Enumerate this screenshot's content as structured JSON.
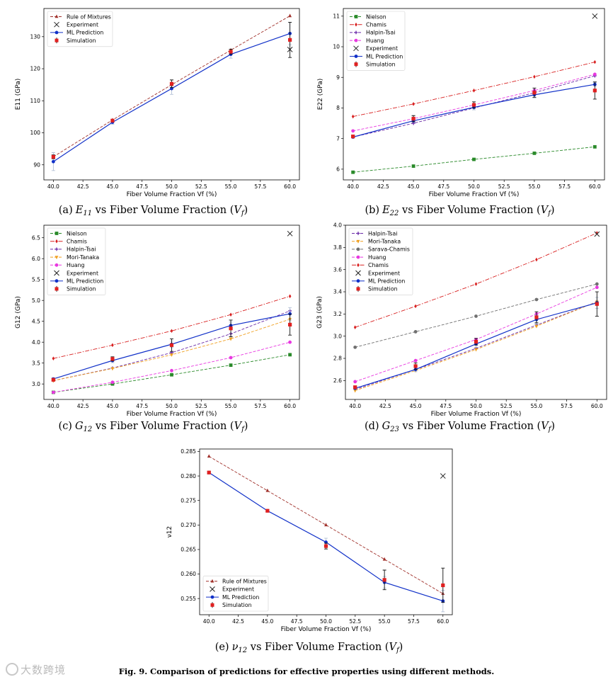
{
  "figure": {
    "caption_label": "Fig. 9.",
    "caption_text": "Comparison of predictions for effective properties using different methods.",
    "watermark": "大数跨境"
  },
  "chart_data": [
    {
      "id": "a",
      "type": "line",
      "caption_tag": "(a)",
      "caption_sym": "E",
      "caption_sub": "11",
      "caption_text": "vs Fiber Volume Fraction (",
      "caption_var": "V",
      "caption_var_sub": "f",
      "caption_end": ")",
      "xlabel": "Fiber Volume Fraction Vf (%)",
      "ylabel": "E11 (GPa)",
      "xlim": [
        39.2,
        60.8
      ],
      "ylim": [
        85.3,
        138.8
      ],
      "xticks": [
        40.0,
        42.5,
        45.0,
        47.5,
        50.0,
        52.5,
        55.0,
        57.5,
        60.0
      ],
      "xtick_labels": [
        "40.0",
        "42.5",
        "45.0",
        "47.5",
        "50.0",
        "52.5",
        "55.0",
        "57.5",
        "60.0"
      ],
      "yticks": [
        90,
        100,
        110,
        120,
        130
      ],
      "ytick_labels": [
        "90",
        "100",
        "110",
        "120",
        "130"
      ],
      "legend_position": "top-left",
      "series": [
        {
          "name": "Rule of Mixtures",
          "kind": "line",
          "color": "#a0302a",
          "dash": "dashed",
          "marker": "triangle",
          "x": [
            40,
            45,
            50,
            55,
            60
          ],
          "y": [
            92.5,
            104,
            115,
            125.8,
            136.5
          ]
        },
        {
          "name": "Experiment",
          "kind": "cross",
          "color": "#222222",
          "x": [
            60
          ],
          "y": [
            126
          ]
        },
        {
          "name": "ML Prediction",
          "kind": "line",
          "color": "#1030c8",
          "dash": "solid",
          "marker": "circle",
          "x": [
            40,
            45,
            50,
            55,
            60
          ],
          "y": [
            91,
            103.3,
            113.8,
            124.5,
            131
          ],
          "err": [
            2.8,
            0.6,
            1.8,
            1.2,
            3.5
          ],
          "err_color": "#a8b8d0"
        },
        {
          "name": "Simulation",
          "kind": "errorpoint",
          "color": "#e02020",
          "x": [
            40,
            45,
            50,
            55,
            60
          ],
          "y": [
            92.5,
            103.8,
            115.3,
            125.3,
            129
          ],
          "err": [
            0.6,
            0.4,
            1.2,
            0.8,
            5.5
          ]
        }
      ]
    },
    {
      "id": "b",
      "type": "line",
      "caption_tag": "(b)",
      "caption_sym": "E",
      "caption_sub": "22",
      "caption_text": "vs Fiber Volume Fraction (",
      "caption_var": "V",
      "caption_var_sub": "f",
      "caption_end": ")",
      "xlabel": "Fiber Volume Fraction Vf (%)",
      "ylabel": "E22 (GPa)",
      "xlim": [
        39.2,
        60.8
      ],
      "ylim": [
        5.65,
        11.25
      ],
      "xticks": [
        40.0,
        42.5,
        45.0,
        47.5,
        50.0,
        52.5,
        55.0,
        57.5,
        60.0
      ],
      "xtick_labels": [
        "40.0",
        "42.5",
        "45.0",
        "47.5",
        "50.0",
        "52.5",
        "55.0",
        "57.5",
        "60.0"
      ],
      "yticks": [
        6,
        7,
        8,
        9,
        10,
        11
      ],
      "ytick_labels": [
        "6",
        "7",
        "8",
        "9",
        "10",
        "11"
      ],
      "legend_position": "top-left",
      "series": [
        {
          "name": "Nielson",
          "kind": "line",
          "color": "#2a8a2a",
          "dash": "dashed",
          "marker": "square",
          "x": [
            40,
            45,
            50,
            55,
            60
          ],
          "y": [
            5.9,
            6.1,
            6.32,
            6.52,
            6.73
          ]
        },
        {
          "name": "Chamis",
          "kind": "line",
          "color": "#d82020",
          "dash": "dashdot",
          "marker": "diamond",
          "x": [
            40,
            45,
            50,
            55,
            60
          ],
          "y": [
            7.72,
            8.13,
            8.57,
            9.02,
            9.5
          ]
        },
        {
          "name": "Halpin-Tsai",
          "kind": "line",
          "color": "#6a2aa8",
          "dash": "dashed",
          "marker": "plus",
          "x": [
            40,
            45,
            50,
            55,
            60
          ],
          "y": [
            7.05,
            7.5,
            8.0,
            8.5,
            9.05
          ]
        },
        {
          "name": "Huang",
          "kind": "line",
          "color": "#e838e0",
          "dash": "dashed",
          "marker": "circle",
          "x": [
            40,
            45,
            50,
            55,
            60
          ],
          "y": [
            7.25,
            7.65,
            8.1,
            8.57,
            9.1
          ]
        },
        {
          "name": "Experiment",
          "kind": "cross",
          "color": "#222222",
          "x": [
            60
          ],
          "y": [
            11
          ]
        },
        {
          "name": "ML Prediction",
          "kind": "line",
          "color": "#1030c8",
          "dash": "solid",
          "marker": "circle",
          "x": [
            40,
            45,
            50,
            55,
            60
          ],
          "y": [
            7.05,
            7.58,
            8.02,
            8.43,
            8.77
          ],
          "err": [
            0.03,
            0.05,
            0.08,
            0.1,
            0.06
          ],
          "err_color": "#a8b8d0"
        },
        {
          "name": "Simulation",
          "kind": "errorpoint",
          "color": "#e02020",
          "x": [
            40,
            45,
            50,
            55,
            60
          ],
          "y": [
            7.07,
            7.65,
            8.1,
            8.5,
            8.57
          ],
          "err": [
            0.04,
            0.1,
            0.1,
            0.15,
            0.28
          ]
        }
      ]
    },
    {
      "id": "c",
      "type": "line",
      "caption_tag": "(c)",
      "caption_sym": "G",
      "caption_sub": "12",
      "caption_text": "vs Fiber Volume Fraction (",
      "caption_var": "V",
      "caption_var_sub": "f",
      "caption_end": ")",
      "xlabel": "Fiber Volume Fraction Vf (%)",
      "ylabel": "G12 (GPa)",
      "xlim": [
        39.2,
        60.8
      ],
      "ylim": [
        2.63,
        6.8
      ],
      "xticks": [
        40.0,
        42.5,
        45.0,
        47.5,
        50.0,
        52.5,
        55.0,
        57.5,
        60.0
      ],
      "xtick_labels": [
        "40.0",
        "42.5",
        "45.0",
        "47.5",
        "50.0",
        "52.5",
        "55.0",
        "57.5",
        "60.0"
      ],
      "yticks": [
        3.0,
        3.5,
        4.0,
        4.5,
        5.0,
        5.5,
        6.0,
        6.5
      ],
      "ytick_labels": [
        "3.0",
        "3.5",
        "4.0",
        "4.5",
        "5.0",
        "5.5",
        "6.0",
        "6.5"
      ],
      "legend_position": "top-left",
      "series": [
        {
          "name": "Nielson",
          "kind": "line",
          "color": "#2a8a2a",
          "dash": "dashed",
          "marker": "square",
          "x": [
            40,
            45,
            50,
            55,
            60
          ],
          "y": [
            2.8,
            3.0,
            3.22,
            3.45,
            3.7
          ]
        },
        {
          "name": "Chamis",
          "kind": "line",
          "color": "#d82020",
          "dash": "dashdot",
          "marker": "diamond",
          "x": [
            40,
            45,
            50,
            55,
            60
          ],
          "y": [
            3.61,
            3.93,
            4.27,
            4.66,
            5.1
          ]
        },
        {
          "name": "Halpin-Tsai",
          "kind": "line",
          "color": "#6a2aa8",
          "dash": "dashed",
          "marker": "plus",
          "x": [
            40,
            45,
            50,
            55,
            60
          ],
          "y": [
            3.08,
            3.38,
            3.75,
            4.2,
            4.75
          ]
        },
        {
          "name": "Mori-Tanaka",
          "kind": "line",
          "color": "#f0a020",
          "dash": "dashed",
          "marker": "triangle-down",
          "x": [
            40,
            45,
            50,
            55,
            60
          ],
          "y": [
            3.08,
            3.37,
            3.7,
            4.08,
            4.55
          ]
        },
        {
          "name": "Huang",
          "kind": "line",
          "color": "#e838e0",
          "dash": "dashed",
          "marker": "circle",
          "x": [
            40,
            45,
            50,
            55,
            60
          ],
          "y": [
            2.8,
            3.04,
            3.32,
            3.63,
            4.0
          ]
        },
        {
          "name": "Experiment",
          "kind": "cross",
          "color": "#222222",
          "x": [
            60
          ],
          "y": [
            6.6
          ]
        },
        {
          "name": "ML Prediction",
          "kind": "line",
          "color": "#1030c8",
          "dash": "solid",
          "marker": "circle",
          "x": [
            40,
            45,
            50,
            55,
            60
          ],
          "y": [
            3.12,
            3.56,
            3.95,
            4.4,
            4.68
          ],
          "err": [
            0.03,
            0.05,
            0.08,
            0.08,
            0.15
          ],
          "err_color": "#a8b8d0"
        },
        {
          "name": "Simulation",
          "kind": "errorpoint",
          "color": "#e02020",
          "x": [
            40,
            45,
            50,
            55,
            60
          ],
          "y": [
            3.1,
            3.6,
            3.93,
            4.33,
            4.42
          ],
          "err": [
            0.03,
            0.05,
            0.15,
            0.2,
            0.25
          ]
        }
      ]
    },
    {
      "id": "d",
      "type": "line",
      "caption_tag": "(d)",
      "caption_sym": "G",
      "caption_sub": "23",
      "caption_text": "vs Fiber Volume Fraction (",
      "caption_var": "V",
      "caption_var_sub": "f",
      "caption_end": ")",
      "xlabel": "Fiber Volume Fraction Vf (%)",
      "ylabel": "G23 (GPa)",
      "xlim": [
        39.2,
        60.8
      ],
      "ylim": [
        2.43,
        4.0
      ],
      "xticks": [
        40.0,
        42.5,
        45.0,
        47.5,
        50.0,
        52.5,
        55.0,
        57.5,
        60.0
      ],
      "xtick_labels": [
        "40.0",
        "42.5",
        "45.0",
        "47.5",
        "50.0",
        "52.5",
        "55.0",
        "57.5",
        "60.0"
      ],
      "yticks": [
        2.6,
        2.8,
        3.0,
        3.2,
        3.4,
        3.6,
        3.8,
        4.0
      ],
      "ytick_labels": [
        "2.6",
        "2.8",
        "3.0",
        "3.2",
        "3.4",
        "3.6",
        "3.8",
        "4.0"
      ],
      "legend_position": "top-left",
      "series": [
        {
          "name": "Halpin-Tsai",
          "kind": "line",
          "color": "#6a2aa8",
          "dash": "dashed",
          "marker": "plus",
          "x": [
            40,
            45,
            50,
            55,
            60
          ],
          "y": [
            2.52,
            2.7,
            2.89,
            3.1,
            3.31
          ]
        },
        {
          "name": "Mori-Tanaka",
          "kind": "line",
          "color": "#f0a020",
          "dash": "dashed",
          "marker": "triangle-down",
          "x": [
            40,
            45,
            50,
            55,
            60
          ],
          "y": [
            2.51,
            2.69,
            2.88,
            3.09,
            3.31
          ]
        },
        {
          "name": "Sarava-Chamis",
          "kind": "line",
          "color": "#707070",
          "dash": "dashed",
          "marker": "circle",
          "x": [
            40,
            45,
            50,
            55,
            60
          ],
          "y": [
            2.9,
            3.04,
            3.18,
            3.33,
            3.47
          ]
        },
        {
          "name": "Huang",
          "kind": "line",
          "color": "#e838e0",
          "dash": "dashed",
          "marker": "circle",
          "x": [
            40,
            45,
            50,
            55,
            60
          ],
          "y": [
            2.59,
            2.78,
            2.97,
            3.2,
            3.44
          ]
        },
        {
          "name": "Chamis",
          "kind": "line",
          "color": "#d82020",
          "dash": "dashdot",
          "marker": "diamond",
          "x": [
            40,
            45,
            50,
            55,
            60
          ],
          "y": [
            3.08,
            3.27,
            3.47,
            3.69,
            3.93
          ]
        },
        {
          "name": "Experiment",
          "kind": "cross",
          "color": "#222222",
          "x": [
            60
          ],
          "y": [
            3.92
          ]
        },
        {
          "name": "ML Prediction",
          "kind": "line",
          "color": "#1030c8",
          "dash": "solid",
          "marker": "circle",
          "x": [
            40,
            45,
            50,
            55,
            60
          ],
          "y": [
            2.53,
            2.7,
            2.93,
            3.15,
            3.3
          ],
          "err": [
            0.01,
            0.02,
            0.03,
            0.04,
            0.05
          ],
          "err_color": "#a8b8d0"
        },
        {
          "name": "Simulation",
          "kind": "errorpoint",
          "color": "#e02020",
          "x": [
            40,
            45,
            50,
            55,
            60
          ],
          "y": [
            2.54,
            2.73,
            2.95,
            3.17,
            3.29
          ],
          "err": [
            0.01,
            0.03,
            0.03,
            0.05,
            0.11
          ]
        }
      ]
    },
    {
      "id": "e",
      "type": "line",
      "caption_tag": "(e)",
      "caption_sym": "ν",
      "caption_sub": "12",
      "caption_text": "vs Fiber Volume Fraction (",
      "caption_var": "V",
      "caption_var_sub": "f",
      "caption_end": ")",
      "xlabel": "Fiber Volume Fraction Vf (%)",
      "ylabel": "ν12",
      "xlim": [
        39.2,
        60.8
      ],
      "ylim": [
        0.2517,
        0.2855
      ],
      "xticks": [
        40.0,
        42.5,
        45.0,
        47.5,
        50.0,
        52.5,
        55.0,
        57.5,
        60.0
      ],
      "xtick_labels": [
        "40.0",
        "42.5",
        "45.0",
        "47.5",
        "50.0",
        "52.5",
        "55.0",
        "57.5",
        "60.0"
      ],
      "yticks": [
        0.255,
        0.26,
        0.265,
        0.27,
        0.275,
        0.28,
        0.285
      ],
      "ytick_labels": [
        "0.255",
        "0.260",
        "0.265",
        "0.270",
        "0.275",
        "0.280",
        "0.285"
      ],
      "legend_position": "bottom-left",
      "series": [
        {
          "name": "Rule of Mixtures",
          "kind": "line",
          "color": "#a0302a",
          "dash": "dashed",
          "marker": "triangle",
          "x": [
            40,
            45,
            50,
            55,
            60
          ],
          "y": [
            0.284,
            0.277,
            0.27,
            0.263,
            0.256
          ]
        },
        {
          "name": "Experiment",
          "kind": "cross",
          "color": "#222222",
          "x": [
            60
          ],
          "y": [
            0.28
          ]
        },
        {
          "name": "ML Prediction",
          "kind": "line",
          "color": "#1030c8",
          "dash": "solid",
          "marker": "circle",
          "x": [
            40,
            45,
            50,
            55,
            60
          ],
          "y": [
            0.2807,
            0.2729,
            0.2665,
            0.2583,
            0.2545
          ],
          "err": [
            0.0003,
            0.0002,
            0.0008,
            0.0012,
            0.0022
          ],
          "err_color": "#a8b8d0"
        },
        {
          "name": "Simulation",
          "kind": "errorpoint",
          "color": "#e02020",
          "x": [
            40,
            45,
            50,
            55,
            60
          ],
          "y": [
            0.2807,
            0.2729,
            0.2657,
            0.2588,
            0.2577
          ],
          "err": [
            0.0002,
            0.0002,
            0.0006,
            0.002,
            0.0035
          ]
        }
      ]
    }
  ]
}
